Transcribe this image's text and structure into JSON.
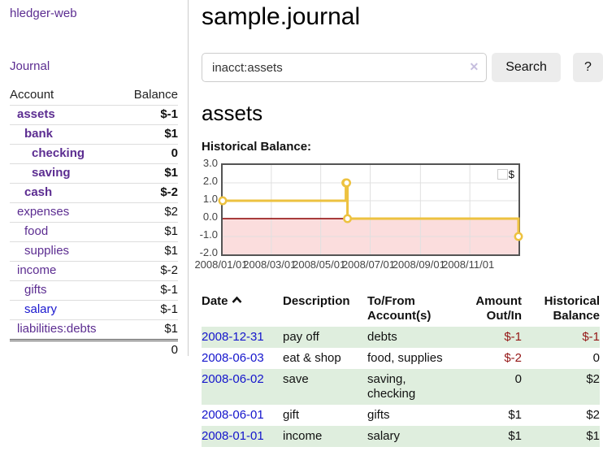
{
  "app": {
    "title": "hledger-web"
  },
  "colors": {
    "link_purple": "#5c2d91",
    "link_blue": "#1414cc",
    "negative_strong": "#941616",
    "negative_muted": "#ae5f5f",
    "row_stripe_green": "#dfeede",
    "chart_line": "#edc240",
    "chart_negative_fill": "#fbdddd",
    "chart_zero_line": "#8b0000",
    "chart_border": "#545454",
    "button_bg": "#ececec"
  },
  "sidebar": {
    "journal_label": "Journal",
    "accounts": {
      "headers": {
        "account": "Account",
        "balance": "Balance"
      },
      "rows": [
        {
          "name": "assets",
          "indent": 0,
          "bold": true,
          "balance": "$-1",
          "balance_class": "neg-strong"
        },
        {
          "name": "bank",
          "indent": 1,
          "bold": true,
          "balance": "$1",
          "balance_class": ""
        },
        {
          "name": "checking",
          "indent": 2,
          "bold": true,
          "balance": "0",
          "balance_class": ""
        },
        {
          "name": "saving",
          "indent": 2,
          "bold": true,
          "balance": "$1",
          "balance_class": ""
        },
        {
          "name": "cash",
          "indent": 1,
          "bold": true,
          "balance": "$-2",
          "balance_class": "neg-strong"
        },
        {
          "name": "expenses",
          "indent": 0,
          "bold": false,
          "balance": "$2",
          "balance_class": ""
        },
        {
          "name": "food",
          "indent": 1,
          "bold": false,
          "balance": "$1",
          "balance_class": ""
        },
        {
          "name": "supplies",
          "indent": 1,
          "bold": false,
          "balance": "$1",
          "balance_class": ""
        },
        {
          "name": "income",
          "indent": 0,
          "bold": false,
          "balance": "$-2",
          "balance_class": "neg-muted"
        },
        {
          "name": "gifts",
          "indent": 1,
          "bold": false,
          "balance": "$-1",
          "balance_class": "neg-muted"
        },
        {
          "name": "salary",
          "indent": 1,
          "bold": false,
          "balance": "$-1",
          "balance_class": "neg-muted",
          "unvisited": true
        },
        {
          "name": "liabilities:debts",
          "indent": 0,
          "bold": false,
          "balance": "$1",
          "balance_class": ""
        }
      ],
      "total": "0"
    }
  },
  "main": {
    "title": "sample.journal",
    "search": {
      "value": "inacct:assets",
      "clear_icon": "✕",
      "button_label": "Search",
      "help_label": "?"
    },
    "account_heading": "assets",
    "chart_heading": "Historical Balance:"
  },
  "chart_data": {
    "type": "line",
    "step": true,
    "title": "Historical Balance",
    "xlim": [
      "2008-01-01",
      "2008-12-31"
    ],
    "ylim": [
      -2,
      3
    ],
    "x_ticks": [
      "2008/01/01",
      "2008/03/01",
      "2008/05/01",
      "2008/07/01",
      "2008/09/01",
      "2008/11/01"
    ],
    "y_ticks": [
      "3.0",
      "2.0",
      "1.0",
      "0.0",
      "-1.0",
      "-2.0"
    ],
    "grid": true,
    "negative_region_below": 0,
    "legend": {
      "label": "$",
      "position": "top-right"
    },
    "series": [
      {
        "name": "$",
        "color": "#edc240",
        "points": [
          [
            "2008-01-01",
            1
          ],
          [
            "2008-06-01",
            2
          ],
          [
            "2008-06-02",
            2
          ],
          [
            "2008-06-03",
            0
          ],
          [
            "2008-12-31",
            -1
          ]
        ]
      }
    ]
  },
  "register": {
    "headers": [
      {
        "lines": [
          "Date"
        ],
        "align": "left",
        "sort": "asc"
      },
      {
        "lines": [
          "Description"
        ],
        "align": "left"
      },
      {
        "lines": [
          "To/From",
          "Account(s)"
        ],
        "align": "left"
      },
      {
        "lines": [
          "Amount",
          "Out/In"
        ],
        "align": "right"
      },
      {
        "lines": [
          "Historical",
          "Balance"
        ],
        "align": "right"
      }
    ],
    "rows": [
      {
        "date": "2008-12-31",
        "description": "pay off",
        "accounts": "debts",
        "amount": "$-1",
        "amount_class": "neg",
        "balance": "$-1",
        "balance_class": "neg"
      },
      {
        "date": "2008-06-03",
        "description": "eat & shop",
        "accounts": "food, supplies",
        "amount": "$-2",
        "amount_class": "neg",
        "balance": "0",
        "balance_class": ""
      },
      {
        "date": "2008-06-02",
        "description": "save",
        "accounts": "saving, checking",
        "amount": "0",
        "amount_class": "",
        "balance": "$2",
        "balance_class": ""
      },
      {
        "date": "2008-06-01",
        "description": "gift",
        "accounts": "gifts",
        "amount": "$1",
        "amount_class": "",
        "balance": "$2",
        "balance_class": ""
      },
      {
        "date": "2008-01-01",
        "description": "income",
        "accounts": "salary",
        "amount": "$1",
        "amount_class": "",
        "balance": "$1",
        "balance_class": ""
      }
    ]
  }
}
